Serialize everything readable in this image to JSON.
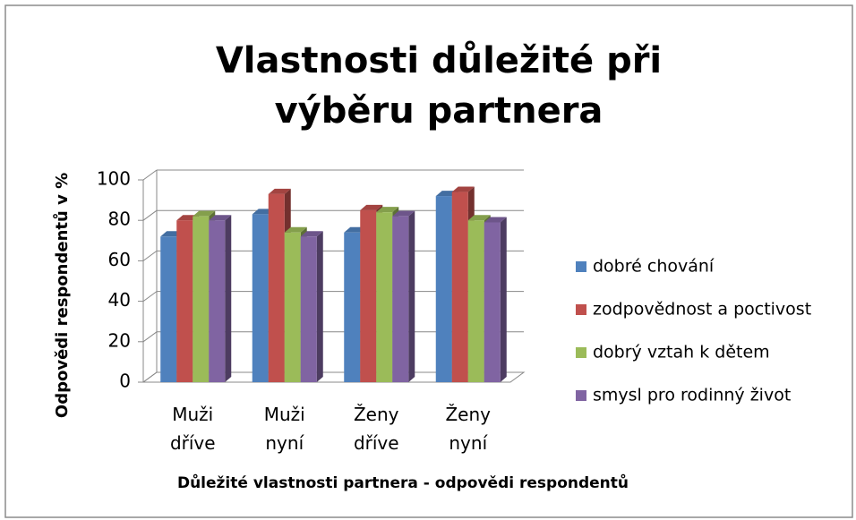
{
  "chart_data": {
    "type": "bar3d",
    "title": "Vlastnosti důležité při výběru partnera",
    "x_label": "Důležité vlastnosti partnera - odpovědi respondentů",
    "y_label": "Odpovědi respondentů v %",
    "categories": [
      "Muži dříve",
      "Muži nyní",
      "Ženy dříve",
      "Ženy nyní"
    ],
    "series": [
      {
        "name": "dobré chování",
        "color": "#4f81bd",
        "values": [
          72,
          83,
          74,
          92
        ]
      },
      {
        "name": "zodpovědnost a poctivost",
        "color": "#c0504d",
        "values": [
          80,
          93,
          85,
          94
        ]
      },
      {
        "name": "dobrý vztah k dětem",
        "color": "#9bbb59",
        "values": [
          82,
          74,
          84,
          80
        ]
      },
      {
        "name": "smysl pro rodinný život",
        "color": "#8064a2",
        "values": [
          80,
          72,
          82,
          79
        ]
      }
    ],
    "ylim": [
      0,
      100
    ],
    "yticks": [
      0,
      20,
      40,
      60,
      80,
      100
    ],
    "grid": true,
    "legend": "right"
  }
}
